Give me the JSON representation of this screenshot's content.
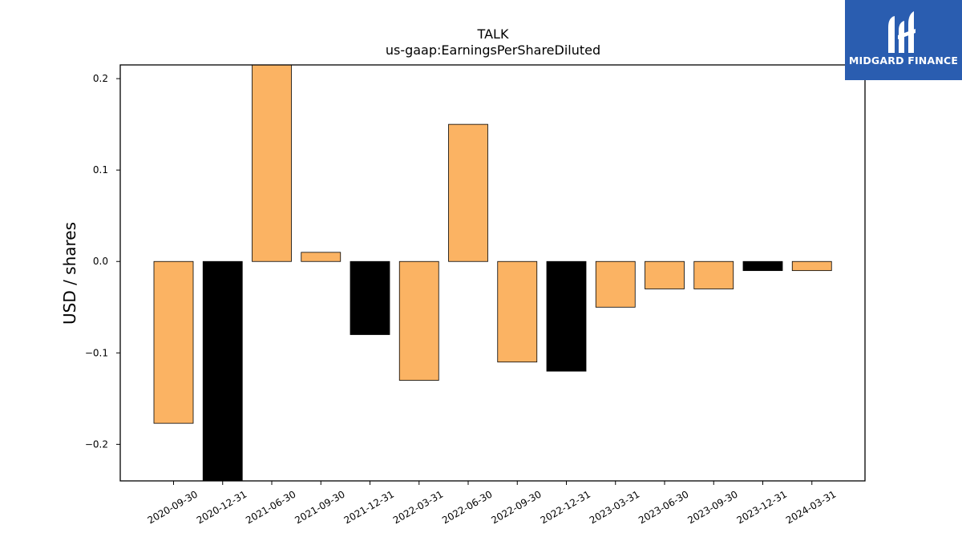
{
  "chart_data": {
    "type": "bar",
    "title": "TALK",
    "subtitle": "us-gaap:EarningsPerShareDiluted",
    "xlabel": "",
    "ylabel": "USD / shares",
    "ylim": [
      -0.24,
      0.215
    ],
    "yticks": [
      -0.2,
      -0.1,
      0.0,
      0.1,
      0.2
    ],
    "ytick_labels": [
      "−0.2",
      "−0.1",
      "0.0",
      "0.1",
      "0.2"
    ],
    "categories": [
      "2020-09-30",
      "2020-12-31",
      "2021-06-30",
      "2021-09-30",
      "2021-12-31",
      "2022-03-31",
      "2022-06-30",
      "2022-09-30",
      "2022-12-31",
      "2023-03-31",
      "2023-06-30",
      "2023-09-30",
      "2023-12-31",
      "2024-03-31"
    ],
    "values": [
      -0.177,
      -0.24,
      0.215,
      0.01,
      -0.08,
      -0.13,
      0.15,
      -0.11,
      -0.12,
      -0.05,
      -0.03,
      -0.03,
      -0.01,
      -0.01
    ],
    "bar_colors": [
      "#fbb363",
      "#000000",
      "#fbb363",
      "#fbb363",
      "#000000",
      "#fbb363",
      "#fbb363",
      "#fbb363",
      "#000000",
      "#fbb363",
      "#fbb363",
      "#fbb363",
      "#000000",
      "#fbb363"
    ],
    "grid": false,
    "legend": "none"
  },
  "colors": {
    "bar_primary": "#fbb363",
    "bar_year_end": "#000000",
    "logo_bg": "#2a5db0"
  },
  "logo": {
    "text": "MIDGARD FINANCE"
  }
}
